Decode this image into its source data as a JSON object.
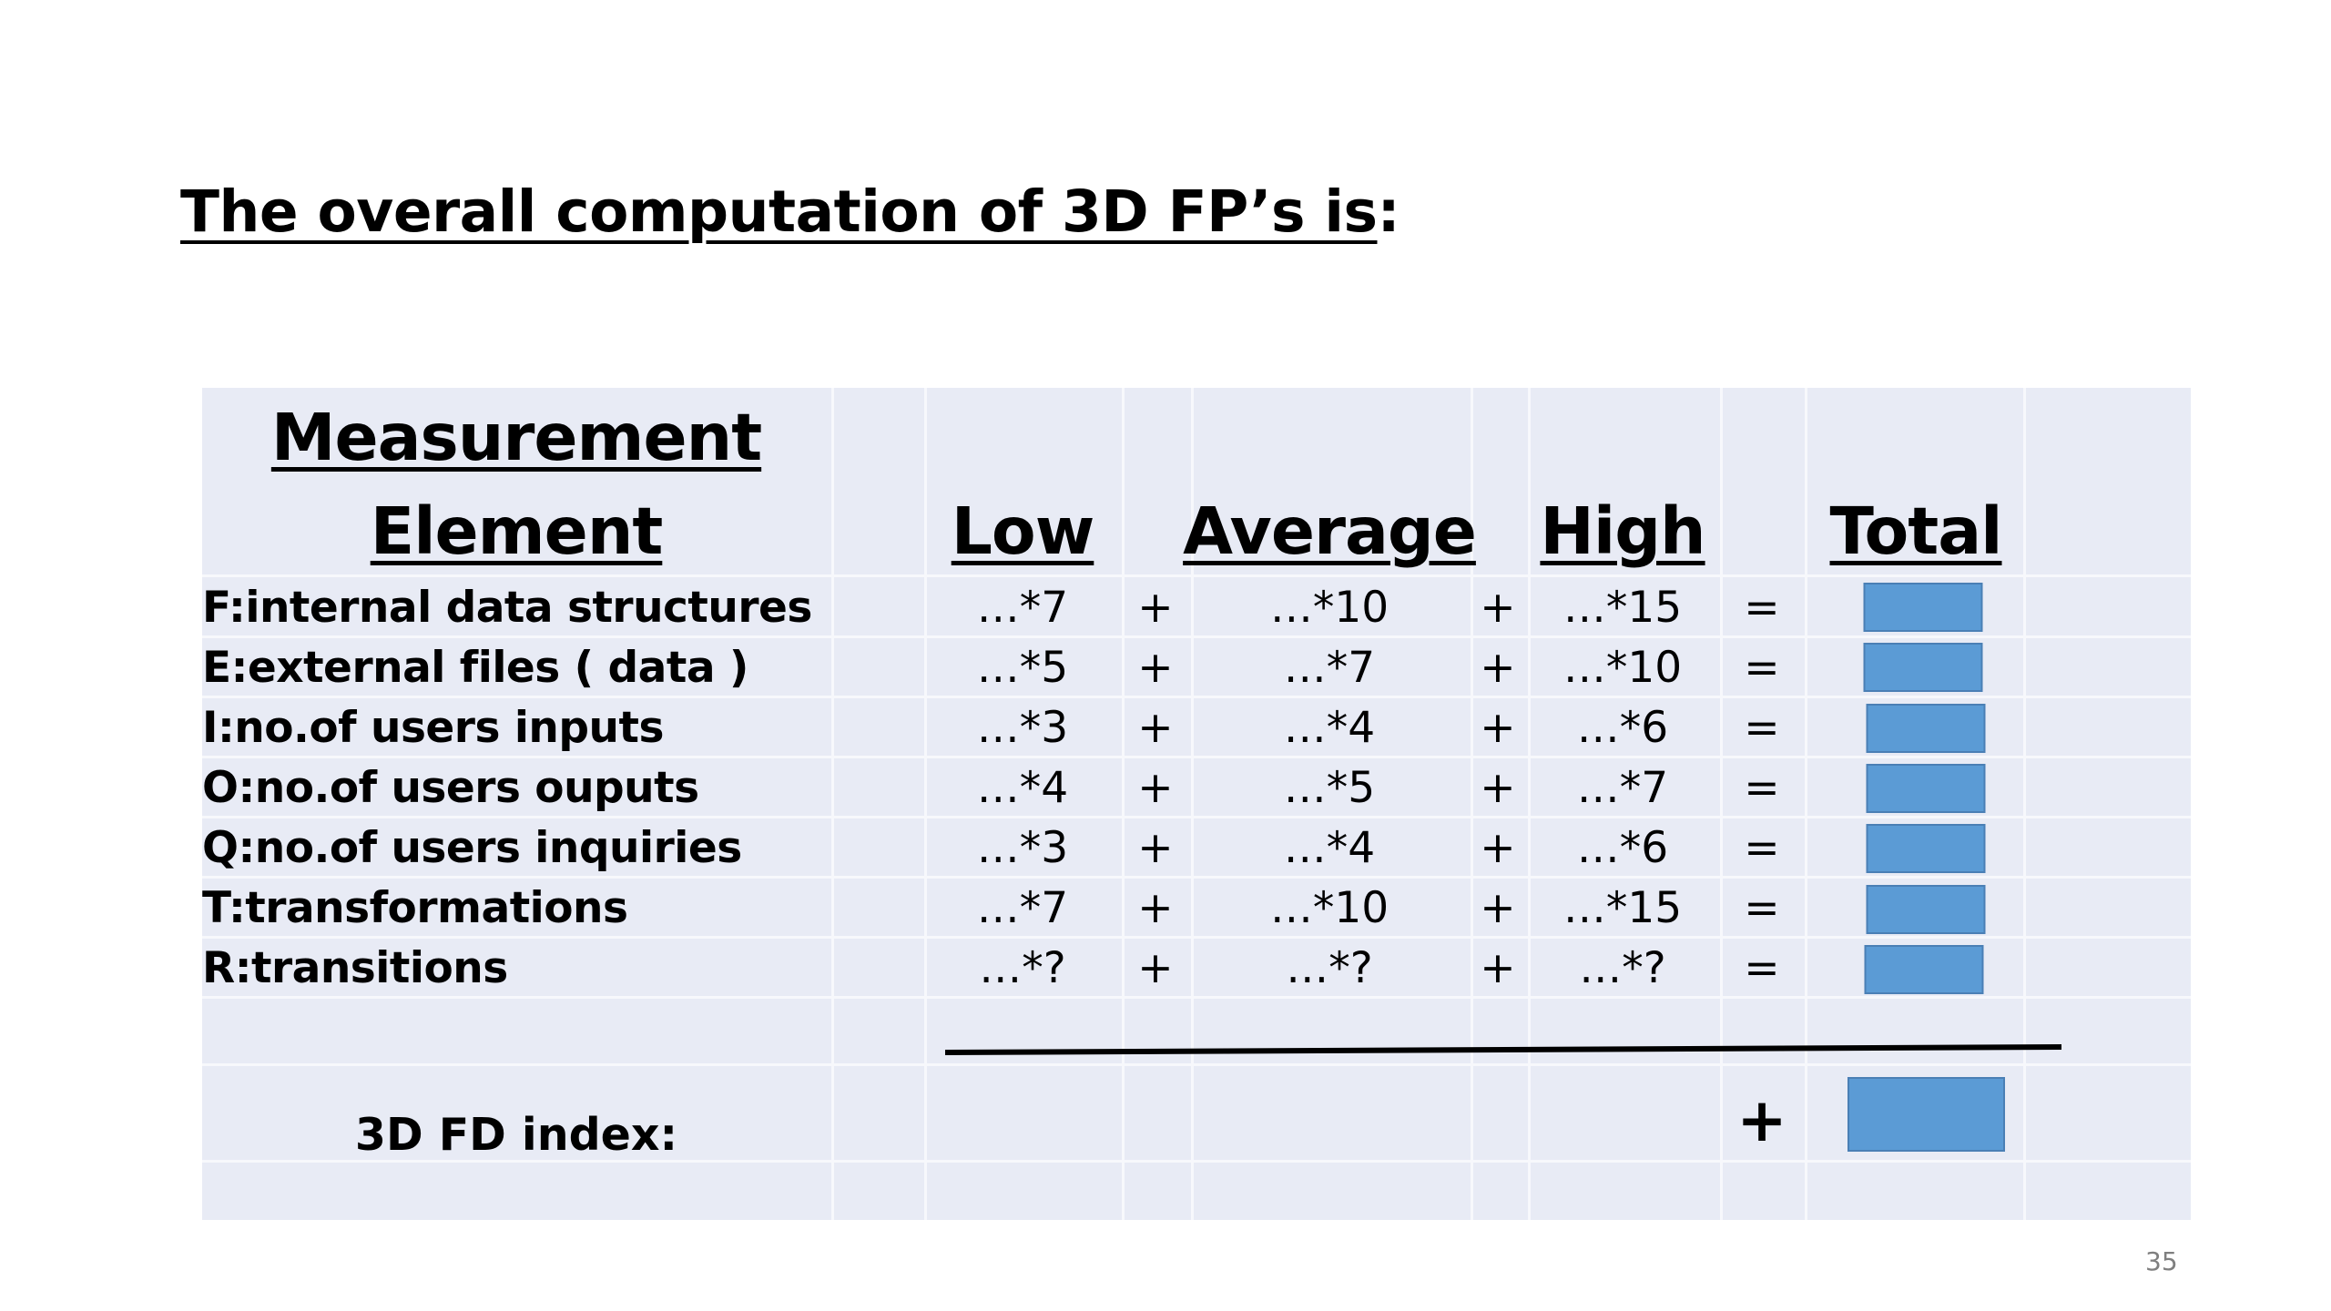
{
  "slide": {
    "title_underlined": "The overall computation of 3D FP’s is",
    "title_colon": ":",
    "page_number": "35"
  },
  "table": {
    "headers": {
      "element_line1": "Measurement",
      "element_line2": "Element",
      "low": "Low",
      "average": "Average",
      "high": "High",
      "total": "Total"
    },
    "rows": [
      {
        "label": "F:internal data structures",
        "low": "…*7",
        "op1": "+",
        "average": "…*10",
        "op2": "+",
        "high": "…*15",
        "eq": "="
      },
      {
        "label": "E:external files ( data )",
        "low": "…*5",
        "op1": "+",
        "average": "…*7",
        "op2": "+",
        "high": "…*10",
        "eq": "="
      },
      {
        "label": "I:no.of users inputs",
        "low": "…*3",
        "op1": "+",
        "average": "…*4",
        "op2": "+",
        "high": "…*6",
        "eq": "="
      },
      {
        "label": "O:no.of users ouputs",
        "low": "…*4",
        "op1": "+",
        "average": "…*5",
        "op2": "+",
        "high": "…*7",
        "eq": "="
      },
      {
        "label": "Q:no.of users inquiries",
        "low": "…*3",
        "op1": "+",
        "average": "…*4",
        "op2": "+",
        "high": "…*6",
        "eq": "="
      },
      {
        "label": "T:transformations",
        "low": "…*7",
        "op1": "+",
        "average": "…*10",
        "op2": "+",
        "high": "…*15",
        "eq": "="
      },
      {
        "label": "R:transitions",
        "low": "…*?",
        "op1": "+",
        "average": "…*?",
        "op2": "+",
        "high": "…*?",
        "eq": "="
      }
    ],
    "index_label": "3D FD index:",
    "index_operator": "+"
  },
  "colors": {
    "table_background": "#e8ebf5",
    "total_box": "#5b9bd5"
  }
}
